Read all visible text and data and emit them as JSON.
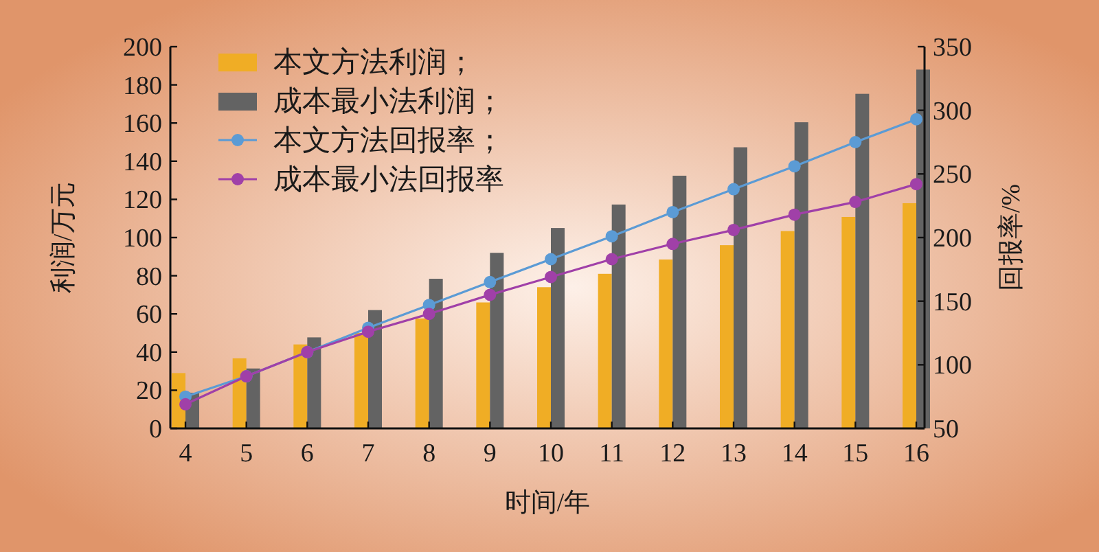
{
  "chart_data": {
    "type": "bar",
    "xlabel": "时间/年",
    "ylabel": "利润/万元",
    "y2label": "回报率/%",
    "categories": [
      "4",
      "5",
      "6",
      "7",
      "8",
      "9",
      "10",
      "11",
      "12",
      "13",
      "14",
      "15",
      "16"
    ],
    "series": [
      {
        "name": "本文方法利润；",
        "color": "#f0ad25",
        "values": [
          29,
          36.7,
          44,
          50,
          57.6,
          66,
          74,
          81,
          88.5,
          96,
          103.4,
          110.8,
          118
        ]
      },
      {
        "name": "成本最小法利润；",
        "color": "#636363",
        "values": [
          18.7,
          31.4,
          47.7,
          62,
          78.4,
          92,
          105,
          117.3,
          132.4,
          147.3,
          160.4,
          175.3,
          188
        ]
      },
      {
        "name": "本文方法回报率；",
        "type": "line",
        "axis": "y2",
        "color": "#5b9bd5",
        "values": [
          75,
          91,
          110,
          129,
          147,
          165,
          183,
          201,
          220,
          238,
          256,
          275,
          293
        ]
      },
      {
        "name": "成本最小法回报率",
        "type": "line",
        "axis": "y2",
        "color": "#a040a8",
        "values": [
          69,
          91,
          110,
          126,
          140,
          155,
          169,
          183,
          195,
          206,
          218,
          228,
          242
        ]
      }
    ],
    "ylim": [
      0,
      200
    ],
    "yticks": [
      0,
      20,
      40,
      60,
      80,
      100,
      120,
      140,
      160,
      180,
      200
    ],
    "y2lim": [
      50,
      350
    ],
    "y2ticks": [
      50,
      100,
      150,
      200,
      250,
      300,
      350
    ],
    "legend": "top left",
    "marker": "circle",
    "line_style": "solid",
    "grid": false
  }
}
